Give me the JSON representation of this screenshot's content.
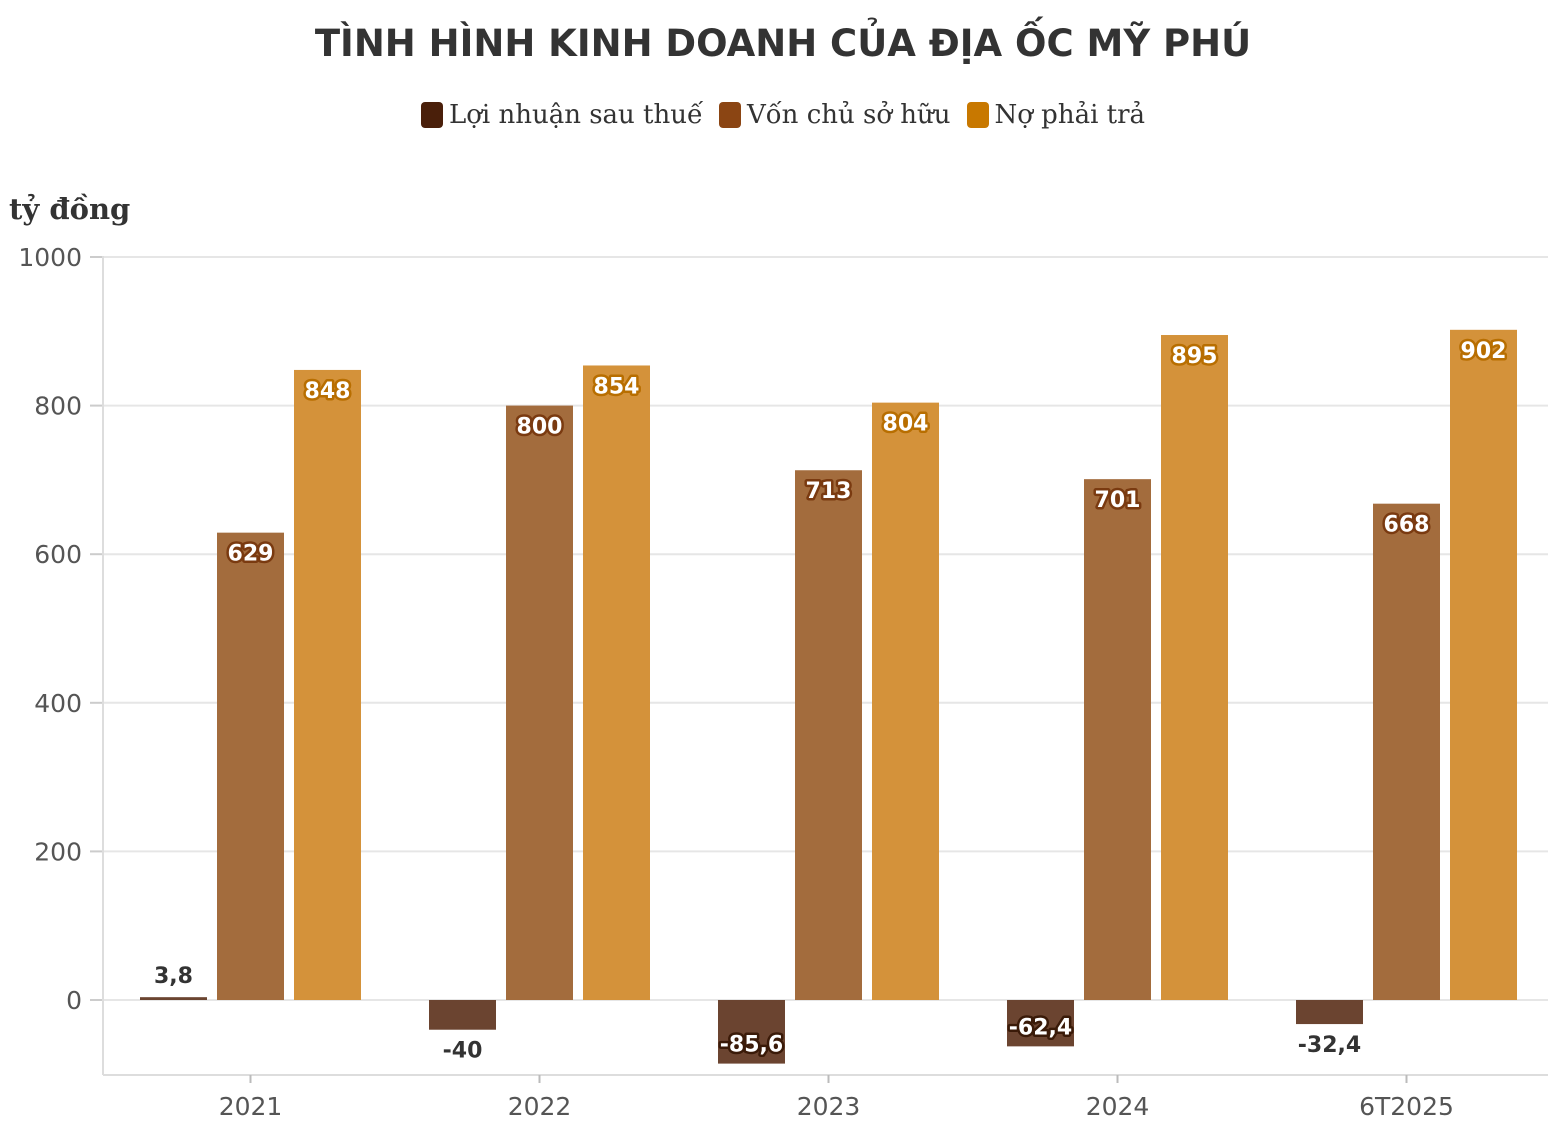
{
  "chart_data": {
    "type": "bar",
    "title": "TÌNH HÌNH KINH DOANH CỦA ĐỊA ỐC MỸ PHÚ",
    "ylabel": "tỷ đồng",
    "xlabel": "",
    "categories": [
      "2021",
      "2022",
      "2023",
      "2024",
      "6T2025"
    ],
    "series": [
      {
        "name": "Lợi nhuận sau thuế",
        "color": "#4a1f0a",
        "bar_color": "#6b4430",
        "values": [
          3.8,
          -40,
          -85.6,
          -62.4,
          -32.4
        ],
        "labels": [
          "3,8",
          "-40",
          "-85,6",
          "-62,4",
          "-32,4"
        ]
      },
      {
        "name": "Vốn chủ sở hữu",
        "color": "#8b4513",
        "bar_color": "#a36c3d",
        "values": [
          629,
          800,
          713,
          701,
          668
        ],
        "labels": [
          "629",
          "800",
          "713",
          "701",
          "668"
        ]
      },
      {
        "name": "Nợ phải trả",
        "color": "#c87800",
        "bar_color": "#d4923a",
        "values": [
          848,
          854,
          804,
          895,
          902
        ],
        "labels": [
          "848",
          "854",
          "804",
          "895",
          "902"
        ]
      }
    ],
    "ylim": [
      -100,
      1000
    ],
    "yticks": [
      0,
      200,
      400,
      600,
      800,
      1000
    ],
    "grid": true,
    "legend_position": "top-center"
  }
}
